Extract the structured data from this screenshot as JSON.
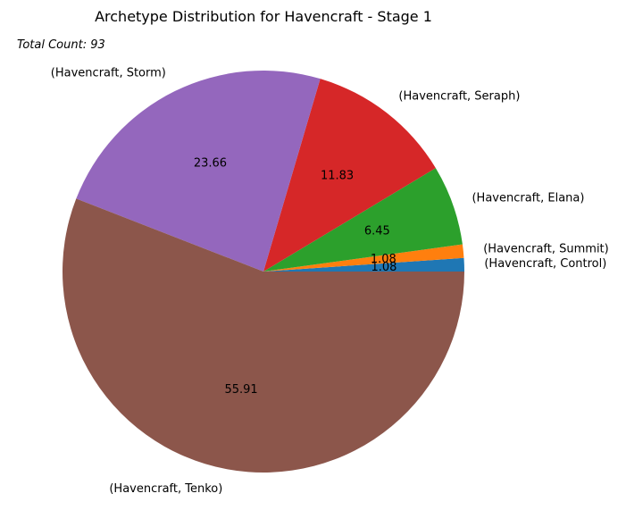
{
  "chart_data": {
    "type": "pie",
    "title": "Archetype Distribution for Havencraft - Stage 1",
    "annotation": "Total Count: 93",
    "start_angle_deg": 0,
    "direction": "counterclockwise",
    "slices": [
      {
        "label": "(Havencraft, Control)",
        "value": 1.08,
        "pct_label": "1.08",
        "color": "#1f77b4"
      },
      {
        "label": "(Havencraft, Summit)",
        "value": 1.08,
        "pct_label": "1.08",
        "color": "#ff7f0e"
      },
      {
        "label": "(Havencraft, Elana)",
        "value": 6.45,
        "pct_label": "6.45",
        "color": "#2ca02c"
      },
      {
        "label": "(Havencraft, Seraph)",
        "value": 11.83,
        "pct_label": "11.83",
        "color": "#d62728"
      },
      {
        "label": "(Havencraft, Storm)",
        "value": 23.66,
        "pct_label": "23.66",
        "color": "#9467bd"
      },
      {
        "label": "(Havencraft, Tenko)",
        "value": 55.91,
        "pct_label": "55.91",
        "color": "#8c564b"
      }
    ]
  }
}
